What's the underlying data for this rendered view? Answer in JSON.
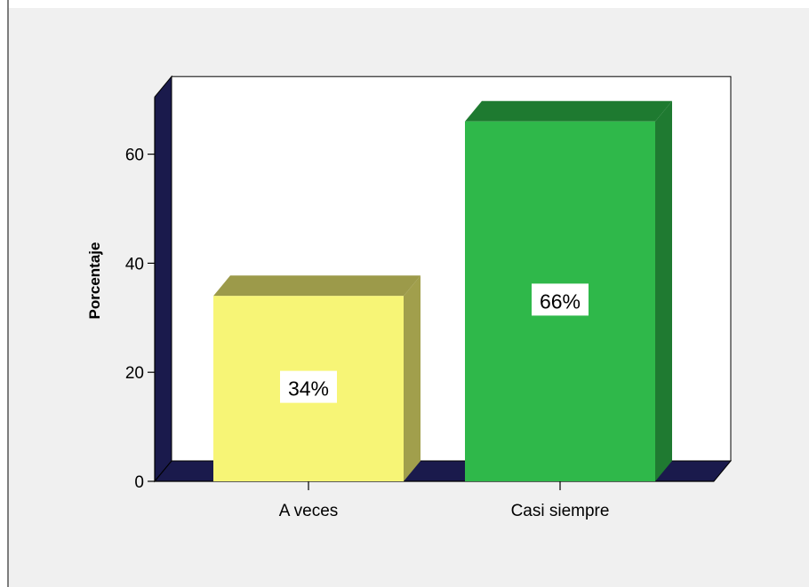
{
  "chart_data": {
    "type": "bar",
    "categories": [
      "A veces",
      "Casi siempre"
    ],
    "values": [
      34,
      66
    ],
    "data_labels": [
      "34%",
      "66%"
    ],
    "title": "",
    "xlabel": "",
    "ylabel": "Porcentaje",
    "ylim": [
      0,
      70
    ],
    "yticks": [
      0,
      20,
      40,
      60
    ],
    "grid": false,
    "legend": "none",
    "style": "3d-bars",
    "colors": {
      "bar_fronts": [
        "#f7f576",
        "#2fb84a"
      ],
      "bar_tops": [
        "#9c9a4a",
        "#1e7a30"
      ],
      "bar_sides": [
        "#a19f4c",
        "#1f7a31"
      ],
      "wall": "#1a1a4c",
      "plot_background": "#ffffff",
      "frame_background": "#f0f0f0"
    }
  }
}
